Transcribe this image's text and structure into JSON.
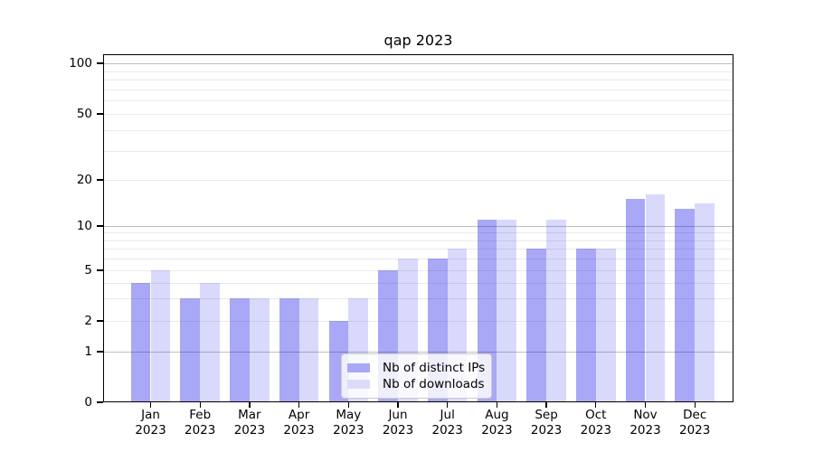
{
  "chart_data": {
    "type": "bar",
    "title": "qap 2023",
    "categories": [
      "Jan\n2023",
      "Feb\n2023",
      "Mar\n2023",
      "Apr\n2023",
      "May\n2023",
      "Jun\n2023",
      "Jul\n2023",
      "Aug\n2023",
      "Sep\n2023",
      "Oct\n2023",
      "Nov\n2023",
      "Dec\n2023"
    ],
    "series": [
      {
        "name": "Nb of distinct IPs",
        "color": "rgba(0,0,228,0.34)",
        "solid_color": "#a8a8f4",
        "values": [
          4,
          3,
          3,
          3,
          2,
          5,
          6,
          11,
          7,
          7,
          15,
          13
        ]
      },
      {
        "name": "Nb of downloads",
        "color": "rgba(0,0,228,0.15)",
        "solid_color": "#dcdcf9",
        "values": [
          5,
          4,
          3,
          3,
          3,
          6,
          7,
          11,
          11,
          7,
          16,
          14
        ]
      }
    ],
    "yscale": "symlog",
    "ylim": [
      0,
      113
    ],
    "y_ticks": [
      0,
      1,
      2,
      5,
      10,
      20,
      50,
      100
    ],
    "y_major_gridlines": [
      1,
      10,
      100
    ],
    "y_minor_gridlines": [
      2,
      3,
      4,
      5,
      6,
      7,
      8,
      9,
      20,
      30,
      40,
      50,
      60,
      70,
      80,
      90
    ],
    "grid": true,
    "legend_position": "lower center inside"
  },
  "colors": {
    "background": "#ffffff",
    "axis": "#000000",
    "major_grid": "#c0c0c0",
    "minor_grid": "#eaeaea",
    "legend_border": "#cccccc"
  }
}
